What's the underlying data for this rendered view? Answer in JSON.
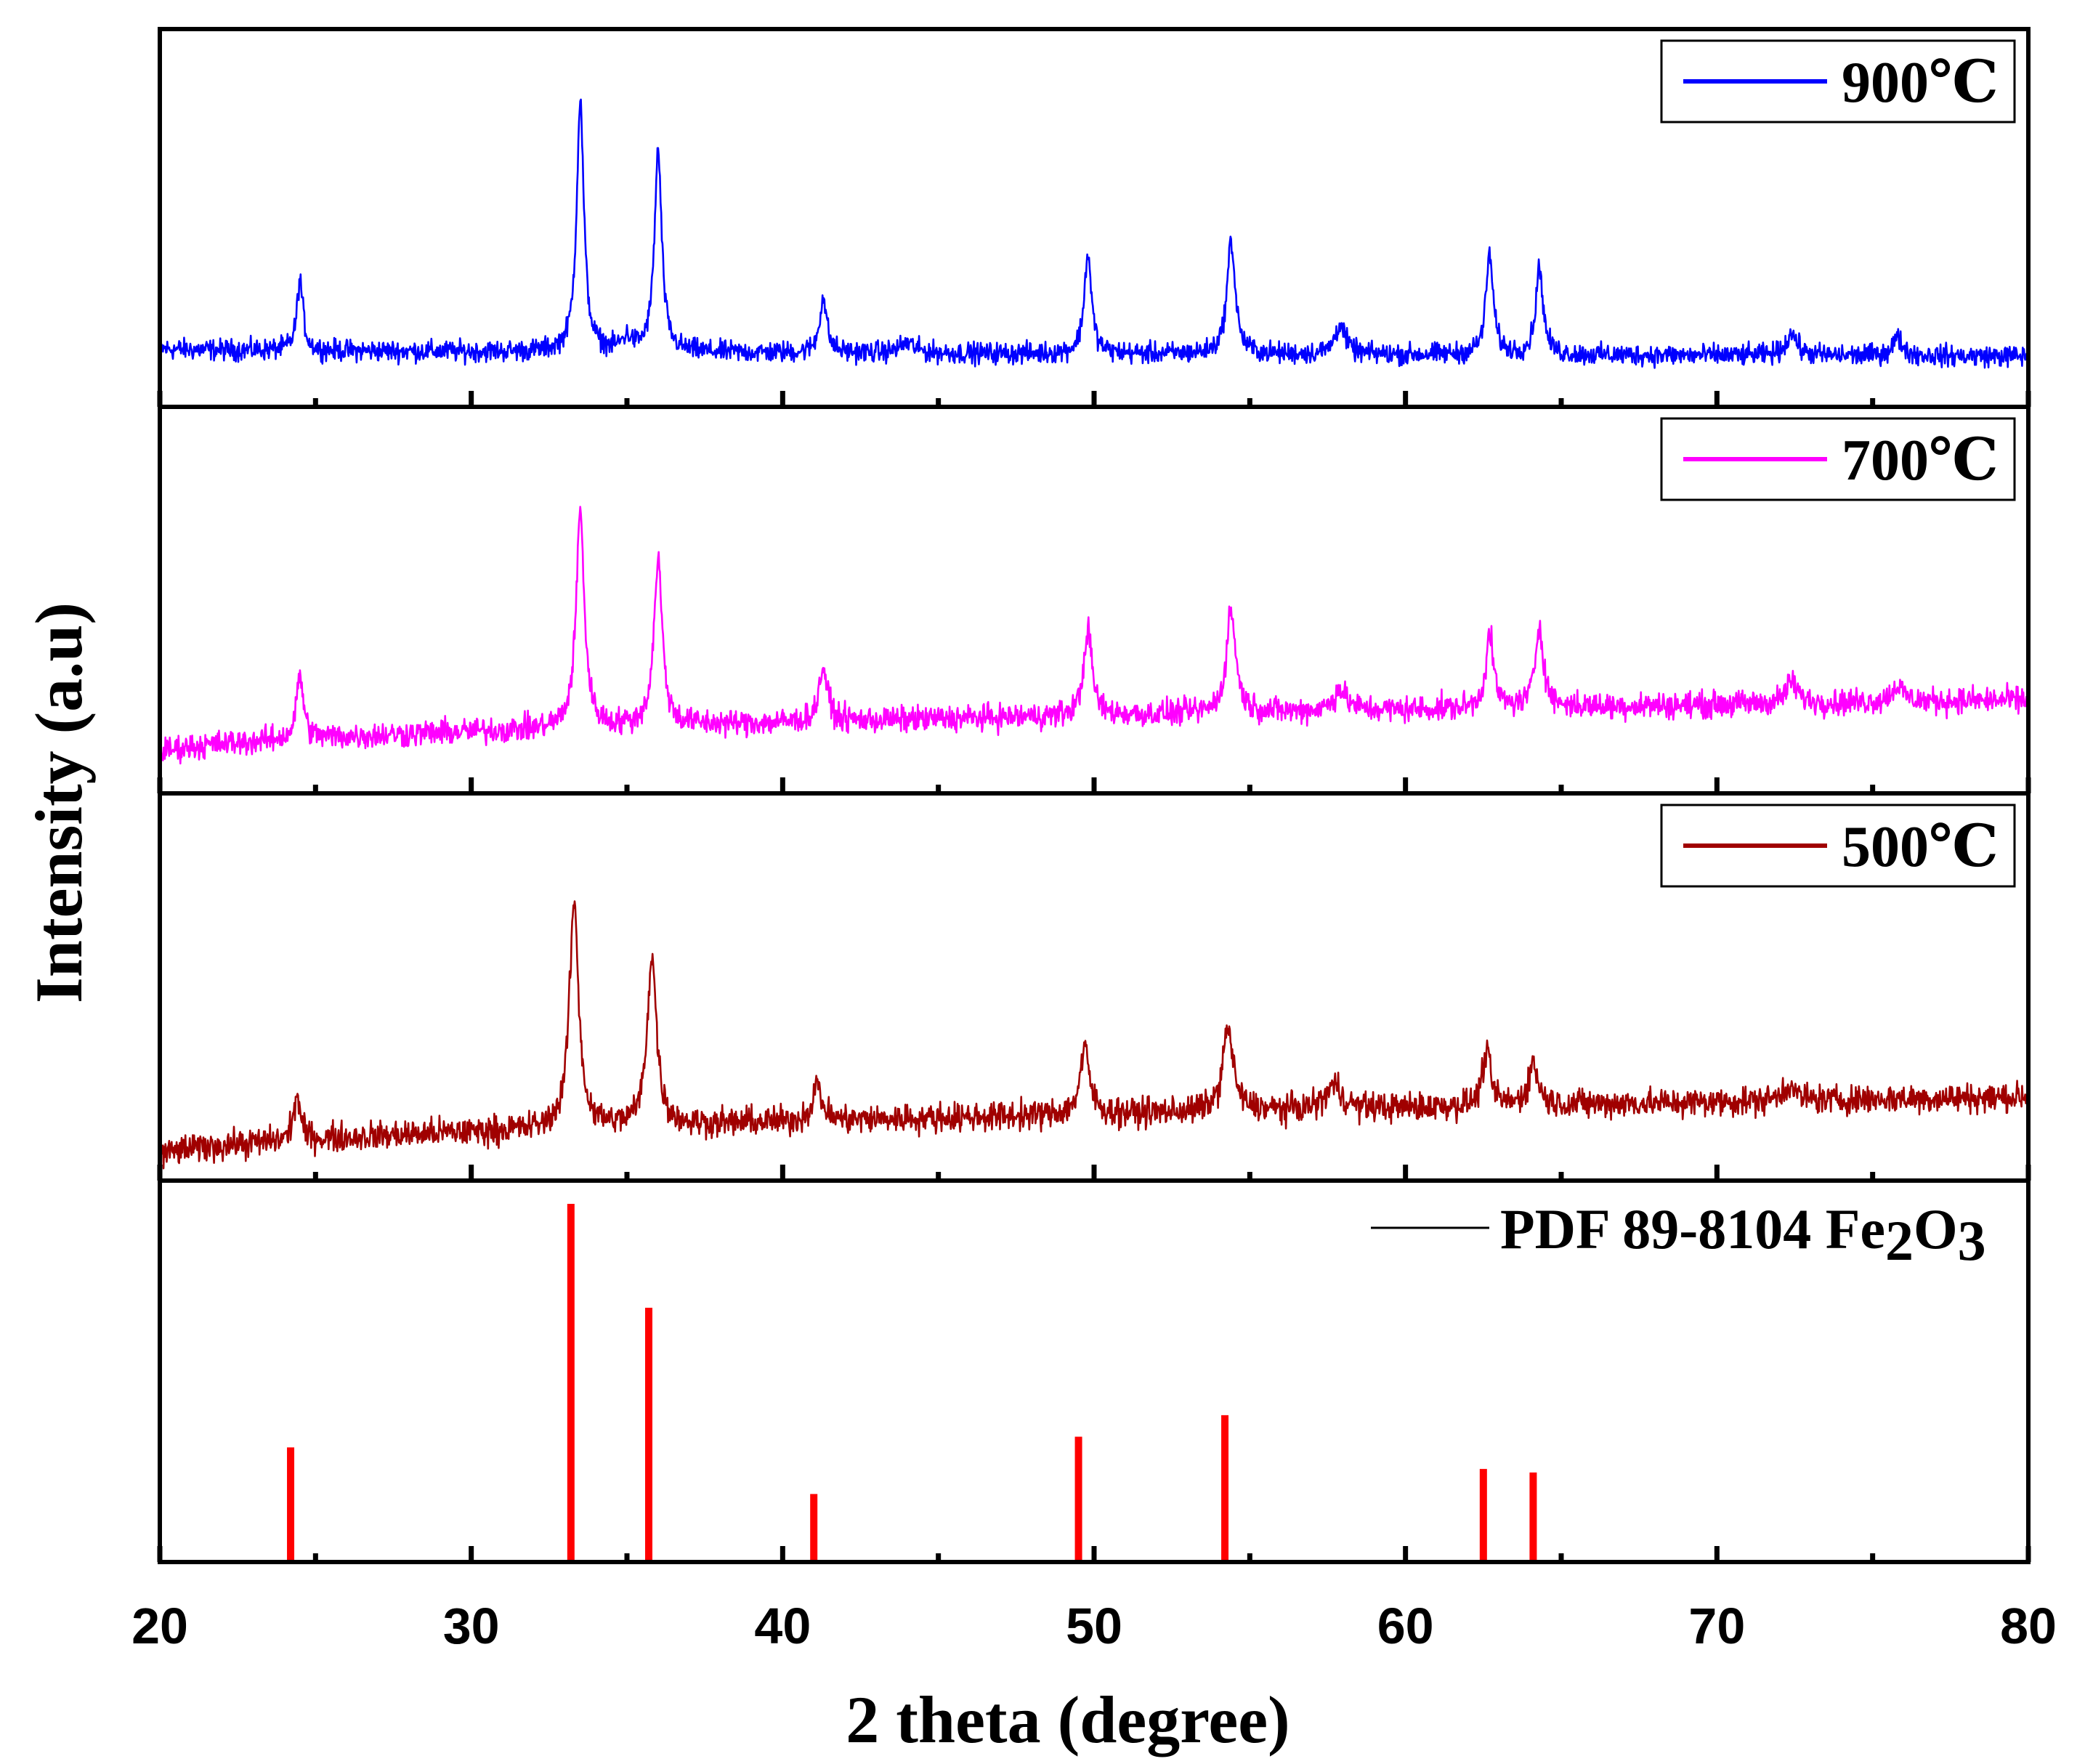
{
  "chart_data": {
    "type": "line",
    "title": "",
    "xlabel": "2 theta (degree)",
    "ylabel": "Intensity (a.u)",
    "xlim": [
      20,
      80
    ],
    "x_ticks": [
      20,
      30,
      40,
      50,
      60,
      70,
      80
    ],
    "x_tick_labels": [
      "20",
      "30",
      "40",
      "50",
      "60",
      "70",
      "80"
    ],
    "series": [
      {
        "name": "900℃",
        "color": "#0000ff",
        "baseline_start": 16,
        "baseline_end": 13,
        "noise": 3.5,
        "peaks": [
          {
            "x": 24.5,
            "height": 28,
            "width": 0.12
          },
          {
            "x": 33.5,
            "height": 100,
            "width": 0.14
          },
          {
            "x": 35.0,
            "height": 5,
            "width": 0.2
          },
          {
            "x": 36.0,
            "height": 80,
            "width": 0.14
          },
          {
            "x": 41.3,
            "height": 22,
            "width": 0.14
          },
          {
            "x": 44.0,
            "height": 4,
            "width": 0.3
          },
          {
            "x": 49.8,
            "height": 40,
            "width": 0.14
          },
          {
            "x": 54.4,
            "height": 45,
            "width": 0.16
          },
          {
            "x": 57.9,
            "height": 12,
            "width": 0.2
          },
          {
            "x": 62.7,
            "height": 40,
            "width": 0.14
          },
          {
            "x": 64.3,
            "height": 35,
            "width": 0.14
          },
          {
            "x": 72.4,
            "height": 9,
            "width": 0.2
          },
          {
            "x": 75.8,
            "height": 7,
            "width": 0.2
          }
        ]
      },
      {
        "name": "700℃",
        "color": "#ff00ff",
        "baseline_start": 8,
        "baseline_end": 28,
        "noise": 4,
        "peaks": [
          {
            "x": 24.5,
            "height": 24,
            "width": 0.13
          },
          {
            "x": 33.5,
            "height": 80,
            "width": 0.16
          },
          {
            "x": 36.0,
            "height": 62,
            "width": 0.16
          },
          {
            "x": 41.3,
            "height": 20,
            "width": 0.16
          },
          {
            "x": 49.8,
            "height": 32,
            "width": 0.16
          },
          {
            "x": 54.4,
            "height": 38,
            "width": 0.18
          },
          {
            "x": 57.9,
            "height": 8,
            "width": 0.25
          },
          {
            "x": 62.7,
            "height": 27,
            "width": 0.15
          },
          {
            "x": 64.3,
            "height": 30,
            "width": 0.16
          },
          {
            "x": 72.4,
            "height": 8,
            "width": 0.22
          },
          {
            "x": 75.8,
            "height": 6,
            "width": 0.22
          }
        ]
      },
      {
        "name": "500℃",
        "color": "#a00000",
        "baseline_start": 2,
        "baseline_end": 22,
        "noise": 4,
        "peaks": [
          {
            "x": 24.4,
            "height": 15,
            "width": 0.13
          },
          {
            "x": 33.3,
            "height": 75,
            "width": 0.18
          },
          {
            "x": 35.8,
            "height": 57,
            "width": 0.18
          },
          {
            "x": 41.1,
            "height": 12,
            "width": 0.18
          },
          {
            "x": 49.7,
            "height": 22,
            "width": 0.18
          },
          {
            "x": 54.3,
            "height": 28,
            "width": 0.2
          },
          {
            "x": 57.7,
            "height": 8,
            "width": 0.3
          },
          {
            "x": 62.6,
            "height": 18,
            "width": 0.16
          },
          {
            "x": 64.1,
            "height": 14,
            "width": 0.18
          },
          {
            "x": 72.3,
            "height": 5,
            "width": 0.25
          }
        ]
      }
    ],
    "reference": {
      "name": "PDF 89-8104 Fe2O3",
      "label_main": "PDF 89-8104 Fe",
      "sub1": "2",
      "mid": "O",
      "sub2": "3",
      "color": "#ff0000",
      "legend_line_color": "#000000",
      "lines": [
        {
          "x": 24.2,
          "intensity": 32
        },
        {
          "x": 33.2,
          "intensity": 100
        },
        {
          "x": 35.7,
          "intensity": 71
        },
        {
          "x": 41.0,
          "intensity": 19
        },
        {
          "x": 49.5,
          "intensity": 35
        },
        {
          "x": 54.2,
          "intensity": 41
        },
        {
          "x": 62.5,
          "intensity": 26
        },
        {
          "x": 64.1,
          "intensity": 25
        }
      ]
    }
  }
}
